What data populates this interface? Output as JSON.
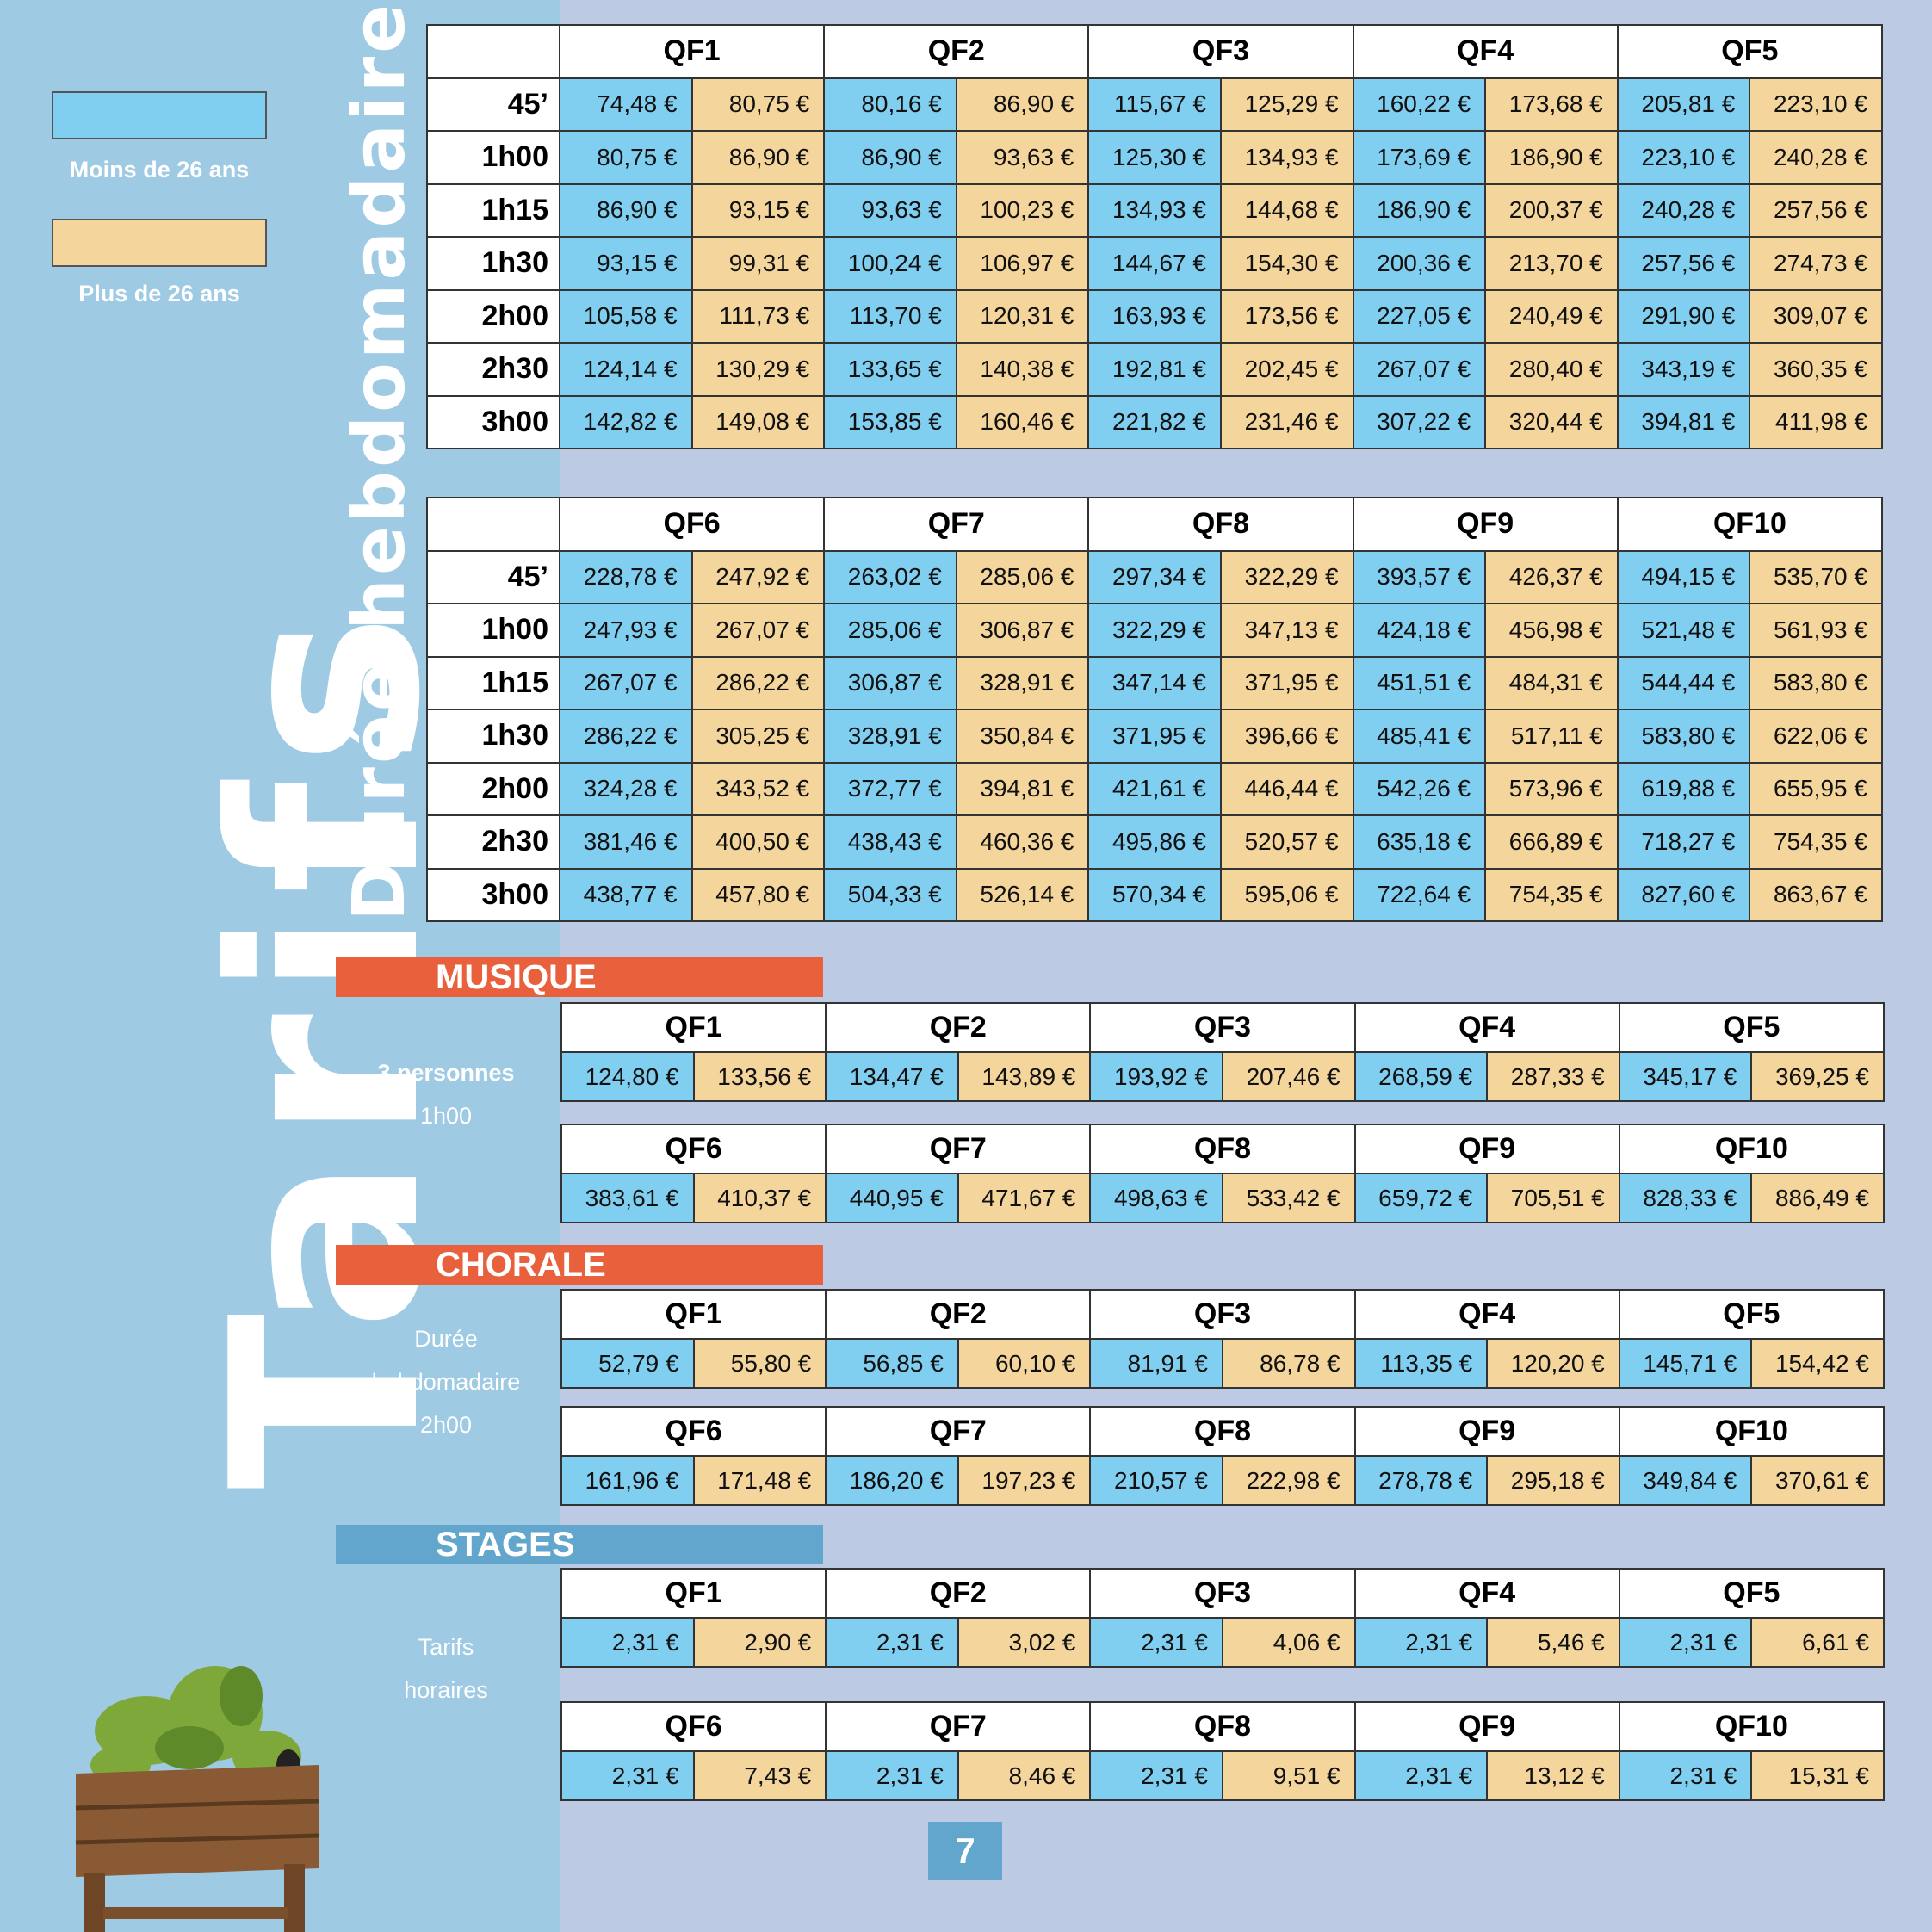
{
  "legend": {
    "under26_label": "Moins de 26 ans",
    "over26_label": "Plus de 26 ans",
    "colors": {
      "under26": "#80cef0",
      "over26": "#f4d59b"
    }
  },
  "title": "Tarifs",
  "weekly": {
    "label": "Durée hebdomadaire",
    "durations": [
      "45’",
      "1h00",
      "1h15",
      "1h30",
      "2h00",
      "2h30",
      "3h00"
    ],
    "table1": {
      "headers": [
        "QF1",
        "QF2",
        "QF3",
        "QF4",
        "QF5"
      ],
      "rows": [
        [
          "74,48 €",
          "80,75 €",
          "80,16 €",
          "86,90 €",
          "115,67 €",
          "125,29 €",
          "160,22 €",
          "173,68 €",
          "205,81 €",
          "223,10 €"
        ],
        [
          "80,75 €",
          "86,90 €",
          "86,90 €",
          "93,63 €",
          "125,30 €",
          "134,93 €",
          "173,69 €",
          "186,90 €",
          "223,10 €",
          "240,28 €"
        ],
        [
          "86,90 €",
          "93,15 €",
          "93,63 €",
          "100,23 €",
          "134,93 €",
          "144,68 €",
          "186,90 €",
          "200,37 €",
          "240,28 €",
          "257,56 €"
        ],
        [
          "93,15 €",
          "99,31 €",
          "100,24 €",
          "106,97 €",
          "144,67 €",
          "154,30 €",
          "200,36 €",
          "213,70 €",
          "257,56 €",
          "274,73 €"
        ],
        [
          "105,58 €",
          "111,73 €",
          "113,70 €",
          "120,31 €",
          "163,93 €",
          "173,56 €",
          "227,05 €",
          "240,49 €",
          "291,90 €",
          "309,07 €"
        ],
        [
          "124,14 €",
          "130,29 €",
          "133,65 €",
          "140,38 €",
          "192,81 €",
          "202,45 €",
          "267,07 €",
          "280,40 €",
          "343,19 €",
          "360,35 €"
        ],
        [
          "142,82 €",
          "149,08 €",
          "153,85 €",
          "160,46 €",
          "221,82 €",
          "231,46 €",
          "307,22 €",
          "320,44 €",
          "394,81 €",
          "411,98 €"
        ]
      ]
    },
    "table2": {
      "headers": [
        "QF6",
        "QF7",
        "QF8",
        "QF9",
        "QF10"
      ],
      "rows": [
        [
          "228,78 €",
          "247,92 €",
          "263,02 €",
          "285,06 €",
          "297,34 €",
          "322,29 €",
          "393,57 €",
          "426,37 €",
          "494,15 €",
          "535,70 €"
        ],
        [
          "247,93 €",
          "267,07 €",
          "285,06 €",
          "306,87 €",
          "322,29 €",
          "347,13 €",
          "424,18 €",
          "456,98 €",
          "521,48 €",
          "561,93 €"
        ],
        [
          "267,07 €",
          "286,22 €",
          "306,87 €",
          "328,91 €",
          "347,14 €",
          "371,95 €",
          "451,51 €",
          "484,31 €",
          "544,44 €",
          "583,80 €"
        ],
        [
          "286,22 €",
          "305,25 €",
          "328,91 €",
          "350,84 €",
          "371,95 €",
          "396,66 €",
          "485,41 €",
          "517,11 €",
          "583,80 €",
          "622,06 €"
        ],
        [
          "324,28 €",
          "343,52 €",
          "372,77 €",
          "394,81 €",
          "421,61 €",
          "446,44 €",
          "542,26 €",
          "573,96 €",
          "619,88 €",
          "655,95 €"
        ],
        [
          "381,46 €",
          "400,50 €",
          "438,43 €",
          "460,36 €",
          "495,86 €",
          "520,57 €",
          "635,18 €",
          "666,89 €",
          "718,27 €",
          "754,35 €"
        ],
        [
          "438,77 €",
          "457,80 €",
          "504,33 €",
          "526,14 €",
          "570,34 €",
          "595,06 €",
          "722,64 €",
          "754,35 €",
          "827,60 €",
          "863,67 €"
        ]
      ]
    }
  },
  "musique": {
    "label": "MUSIQUE",
    "note_line1": "3 personnes",
    "note_line2": "1h00",
    "table1": {
      "headers": [
        "QF1",
        "QF2",
        "QF3",
        "QF4",
        "QF5"
      ],
      "values": [
        "124,80 €",
        "133,56 €",
        "134,47 €",
        "143,89 €",
        "193,92 €",
        "207,46 €",
        "268,59 €",
        "287,33 €",
        "345,17 €",
        "369,25 €"
      ]
    },
    "table2": {
      "headers": [
        "QF6",
        "QF7",
        "QF8",
        "QF9",
        "QF10"
      ],
      "values": [
        "383,61 €",
        "410,37 €",
        "440,95 €",
        "471,67 €",
        "498,63 €",
        "533,42 €",
        "659,72 €",
        "705,51 €",
        "828,33 €",
        "886,49 €"
      ]
    }
  },
  "chorale": {
    "label": "CHORALE",
    "note_line1": "Durée",
    "note_line2": "hebdomadaire",
    "note_line3": "2h00",
    "table1": {
      "headers": [
        "QF1",
        "QF2",
        "QF3",
        "QF4",
        "QF5"
      ],
      "values": [
        "52,79 €",
        "55,80 €",
        "56,85 €",
        "60,10 €",
        "81,91 €",
        "86,78 €",
        "113,35 €",
        "120,20 €",
        "145,71 €",
        "154,42 €"
      ]
    },
    "table2": {
      "headers": [
        "QF6",
        "QF7",
        "QF8",
        "QF9",
        "QF10"
      ],
      "values": [
        "161,96 €",
        "171,48 €",
        "186,20 €",
        "197,23 €",
        "210,57 €",
        "222,98 €",
        "278,78 €",
        "295,18 €",
        "349,84 €",
        "370,61 €"
      ]
    }
  },
  "stages": {
    "label": "STAGES",
    "note_line1": "Tarifs",
    "note_line2": "horaires",
    "table1": {
      "headers": [
        "QF1",
        "QF2",
        "QF3",
        "QF4",
        "QF5"
      ],
      "values": [
        "2,31 €",
        "2,90 €",
        "2,31 €",
        "3,02 €",
        "2,31 €",
        "4,06 €",
        "2,31 €",
        "5,46 €",
        "2,31 €",
        "6,61 €"
      ]
    },
    "table2": {
      "headers": [
        "QF6",
        "QF7",
        "QF8",
        "QF9",
        "QF10"
      ],
      "values": [
        "2,31 €",
        "7,43 €",
        "2,31 €",
        "8,46 €",
        "2,31 €",
        "9,51 €",
        "2,31 €",
        "13,12 €",
        "2,31 €",
        "15,31 €"
      ]
    }
  },
  "page_number": "7",
  "illustration": "planter-box-with-cat"
}
